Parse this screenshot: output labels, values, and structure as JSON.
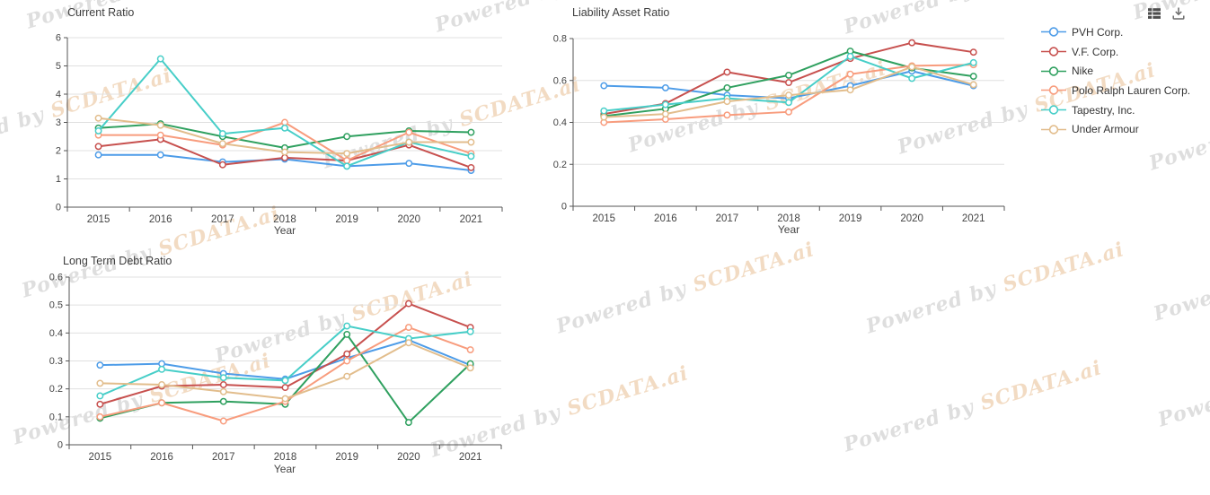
{
  "toolbar": {
    "data_view_icon": "data-view",
    "download_icon": "download"
  },
  "watermark": {
    "prefix": "Powered by ",
    "brand": "SCDATA.ai"
  },
  "legend": [
    {
      "label": "PVH Corp.",
      "color": "#4D9CE8"
    },
    {
      "label": "V.F. Corp.",
      "color": "#C7504E"
    },
    {
      "label": "Nike",
      "color": "#2FA05F"
    },
    {
      "label": "Polo Ralph Lauren Corp.",
      "color": "#F89C7D"
    },
    {
      "label": "Tapestry, Inc.",
      "color": "#47CEC8"
    },
    {
      "label": "Under Armour",
      "color": "#E2BD8C"
    }
  ],
  "chart_data": [
    {
      "type": "line",
      "title": "Current Ratio",
      "xlabel": "Year",
      "categories": [
        "2015",
        "2016",
        "2017",
        "2018",
        "2019",
        "2020",
        "2021"
      ],
      "ylim": [
        0,
        6
      ],
      "yticks": [
        "0",
        "1",
        "2",
        "3",
        "4",
        "5",
        "6"
      ],
      "grid": true,
      "legend_position": "right",
      "series": [
        {
          "name": "PVH Corp.",
          "color": "#4D9CE8",
          "values": [
            1.85,
            1.85,
            1.6,
            1.7,
            1.45,
            1.55,
            1.3
          ]
        },
        {
          "name": "V.F. Corp.",
          "color": "#C7504E",
          "values": [
            2.15,
            2.4,
            1.5,
            1.75,
            1.65,
            2.2,
            1.4
          ]
        },
        {
          "name": "Nike",
          "color": "#2FA05F",
          "values": [
            2.8,
            2.95,
            2.5,
            2.1,
            2.5,
            2.7,
            2.65
          ]
        },
        {
          "name": "Polo Ralph Lauren Corp.",
          "color": "#F89C7D",
          "values": [
            2.55,
            2.55,
            2.2,
            3.0,
            1.65,
            2.65,
            1.9
          ]
        },
        {
          "name": "Tapestry, Inc.",
          "color": "#47CEC8",
          "values": [
            2.7,
            5.25,
            2.6,
            2.8,
            1.45,
            2.3,
            1.8
          ]
        },
        {
          "name": "Under Armour",
          "color": "#E2BD8C",
          "values": [
            3.15,
            2.9,
            2.25,
            1.95,
            1.9,
            2.3,
            2.3
          ]
        }
      ]
    },
    {
      "type": "line",
      "title": "Liability Asset Ratio",
      "xlabel": "Year",
      "categories": [
        "2015",
        "2016",
        "2017",
        "2018",
        "2019",
        "2020",
        "2021"
      ],
      "ylim": [
        0,
        0.8
      ],
      "yticks": [
        "0",
        "0.2",
        "0.4",
        "0.6",
        "0.8"
      ],
      "grid": true,
      "legend_position": "right",
      "series": [
        {
          "name": "PVH Corp.",
          "color": "#4D9CE8",
          "values": [
            0.575,
            0.565,
            0.53,
            0.515,
            0.575,
            0.645,
            0.575
          ]
        },
        {
          "name": "V.F. Corp.",
          "color": "#C7504E",
          "values": [
            0.44,
            0.49,
            0.64,
            0.59,
            0.705,
            0.78,
            0.735
          ]
        },
        {
          "name": "Nike",
          "color": "#2FA05F",
          "values": [
            0.43,
            0.465,
            0.565,
            0.625,
            0.74,
            0.66,
            0.62
          ]
        },
        {
          "name": "Polo Ralph Lauren Corp.",
          "color": "#F89C7D",
          "values": [
            0.4,
            0.415,
            0.435,
            0.45,
            0.63,
            0.67,
            0.675
          ]
        },
        {
          "name": "Tapestry, Inc.",
          "color": "#47CEC8",
          "values": [
            0.455,
            0.485,
            0.515,
            0.495,
            0.715,
            0.61,
            0.685
          ]
        },
        {
          "name": "Under Armour",
          "color": "#E2BD8C",
          "values": [
            0.425,
            0.44,
            0.5,
            0.53,
            0.555,
            0.665,
            0.58
          ]
        }
      ]
    },
    {
      "type": "line",
      "title": "Long Term Debt Ratio",
      "xlabel": "Year",
      "categories": [
        "2015",
        "2016",
        "2017",
        "2018",
        "2019",
        "2020",
        "2021"
      ],
      "ylim": [
        0,
        0.6
      ],
      "yticks": [
        "0",
        "0.1",
        "0.2",
        "0.3",
        "0.4",
        "0.5",
        "0.6"
      ],
      "grid": true,
      "legend_position": "right",
      "series": [
        {
          "name": "PVH Corp.",
          "color": "#4D9CE8",
          "values": [
            0.285,
            0.29,
            0.255,
            0.235,
            0.31,
            0.375,
            0.285
          ]
        },
        {
          "name": "V.F. Corp.",
          "color": "#C7504E",
          "values": [
            0.145,
            0.21,
            0.215,
            0.205,
            0.325,
            0.505,
            0.42
          ]
        },
        {
          "name": "Nike",
          "color": "#2FA05F",
          "values": [
            0.095,
            0.15,
            0.155,
            0.145,
            0.395,
            0.08,
            0.29
          ]
        },
        {
          "name": "Polo Ralph Lauren Corp.",
          "color": "#F89C7D",
          "values": [
            0.1,
            0.15,
            0.085,
            0.155,
            0.3,
            0.42,
            0.34
          ]
        },
        {
          "name": "Tapestry, Inc.",
          "color": "#47CEC8",
          "values": [
            0.175,
            0.27,
            0.24,
            0.23,
            0.425,
            0.38,
            0.405
          ]
        },
        {
          "name": "Under Armour",
          "color": "#E2BD8C",
          "values": [
            0.22,
            0.215,
            0.19,
            0.165,
            0.245,
            0.365,
            0.275
          ]
        }
      ]
    }
  ]
}
